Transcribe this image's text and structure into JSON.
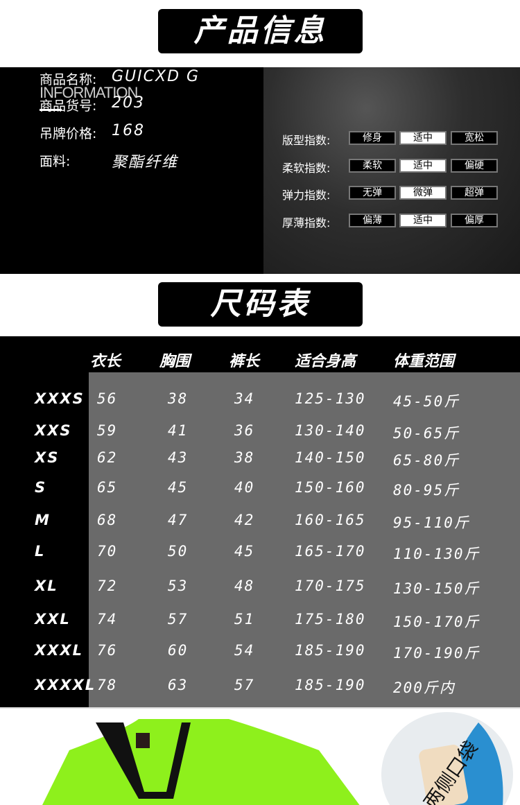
{
  "banner1": "产品信息",
  "info": {
    "title": "INFORMATION",
    "rows": [
      {
        "label": "商品名称:",
        "value": "GUICXD G"
      },
      {
        "label": "商品货号:",
        "value": "203"
      },
      {
        "label": "吊牌价格:",
        "value": "168"
      },
      {
        "label": "面料:",
        "value": "聚酯纤维"
      }
    ],
    "indices": [
      {
        "label": "版型指数:",
        "options": [
          "修身",
          "适中",
          "宽松"
        ],
        "selected": 1
      },
      {
        "label": "柔软指数:",
        "options": [
          "柔软",
          "适中",
          "偏硬"
        ],
        "selected": 1
      },
      {
        "label": "弹力指数:",
        "options": [
          "无弹",
          "微弹",
          "超弹"
        ],
        "selected": 1
      },
      {
        "label": "厚薄指数:",
        "options": [
          "偏薄",
          "适中",
          "偏厚"
        ],
        "selected": 1
      }
    ]
  },
  "banner2": "尺码表",
  "size_table": {
    "headers": [
      "衣长",
      "胸围",
      "裤长",
      "适合身高",
      "体重范围"
    ],
    "rows": [
      [
        "XXXS",
        "56",
        "38",
        "34",
        "125-130",
        "45-50斤"
      ],
      [
        "XXS",
        "59",
        "41",
        "36",
        "130-140",
        "50-65斤"
      ],
      [
        "XS",
        "62",
        "43",
        "38",
        "140-150",
        "65-80斤"
      ],
      [
        "S",
        "65",
        "45",
        "40",
        "150-160",
        "80-95斤"
      ],
      [
        "M",
        "68",
        "47",
        "42",
        "160-165",
        "95-110斤"
      ],
      [
        "L",
        "70",
        "50",
        "45",
        "165-170",
        "110-130斤"
      ],
      [
        "XL",
        "72",
        "53",
        "48",
        "170-175",
        "130-150斤"
      ],
      [
        "XXL",
        "74",
        "57",
        "51",
        "175-180",
        "150-170斤"
      ],
      [
        "XXXL",
        "76",
        "60",
        "54",
        "185-190",
        "170-190斤"
      ],
      [
        "XXXXL",
        "78",
        "63",
        "57",
        "185-190",
        "200斤内"
      ]
    ]
  },
  "detail_photo": {
    "caption": "两侧口袋",
    "shirt_color": "#8ef01c"
  }
}
